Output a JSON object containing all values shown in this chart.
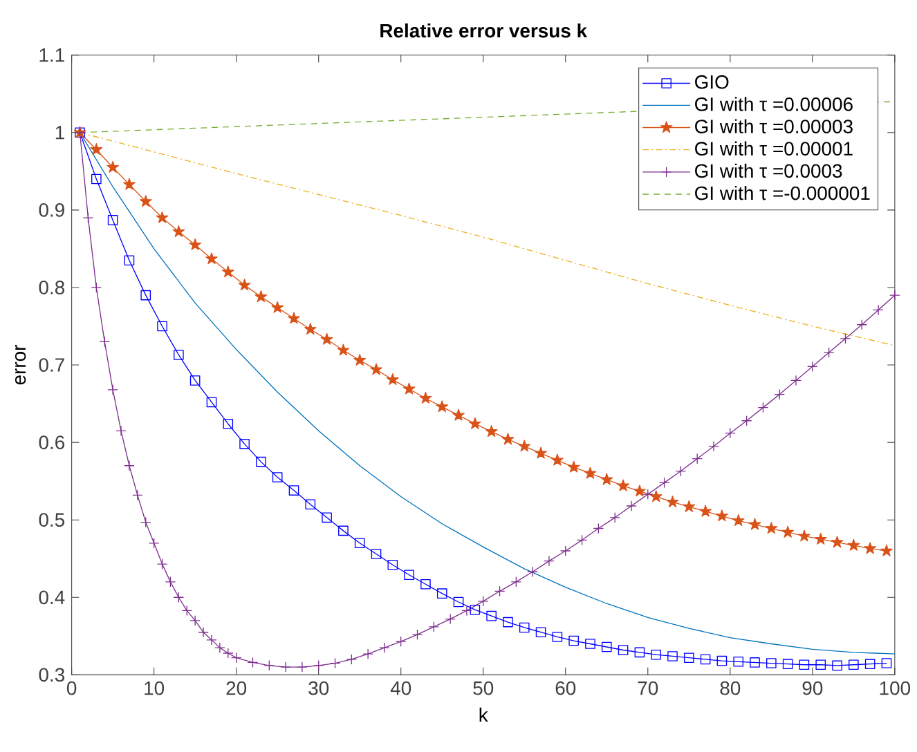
{
  "chart_data": {
    "type": "line",
    "title": "Relative error versus k",
    "xlabel": "k",
    "ylabel": "error",
    "xlim": [
      0,
      100
    ],
    "ylim": [
      0.3,
      1.1
    ],
    "xticks": [
      0,
      10,
      20,
      30,
      40,
      50,
      60,
      70,
      80,
      90,
      100
    ],
    "yticks": [
      0.3,
      0.4,
      0.5,
      0.6,
      0.7,
      0.8,
      0.9,
      1,
      1.1
    ],
    "grid": false,
    "legend": "top right",
    "series": [
      {
        "name": "GIO",
        "color": "#0000ff",
        "marker": "square",
        "line_style": "solid",
        "x": [
          1,
          3,
          5,
          7,
          9,
          11,
          13,
          15,
          17,
          19,
          21,
          23,
          25,
          27,
          29,
          31,
          33,
          35,
          37,
          39,
          41,
          43,
          45,
          47,
          49,
          51,
          53,
          55,
          57,
          59,
          61,
          63,
          65,
          67,
          69,
          71,
          73,
          75,
          77,
          79,
          81,
          83,
          85,
          87,
          89,
          91,
          93,
          95,
          97,
          99
        ],
        "values": [
          1.0,
          0.94,
          0.887,
          0.835,
          0.79,
          0.75,
          0.713,
          0.68,
          0.652,
          0.624,
          0.598,
          0.575,
          0.555,
          0.538,
          0.52,
          0.503,
          0.486,
          0.47,
          0.456,
          0.442,
          0.429,
          0.417,
          0.405,
          0.394,
          0.384,
          0.376,
          0.368,
          0.361,
          0.355,
          0.349,
          0.344,
          0.34,
          0.336,
          0.332,
          0.329,
          0.326,
          0.324,
          0.322,
          0.32,
          0.318,
          0.317,
          0.316,
          0.315,
          0.314,
          0.313,
          0.313,
          0.312,
          0.313,
          0.314,
          0.315
        ]
      },
      {
        "name": "GI with τ =0.00006",
        "color": "#0072bd",
        "marker": "none",
        "line_style": "solid",
        "x": [
          1,
          5,
          10,
          15,
          20,
          25,
          30,
          35,
          40,
          45,
          50,
          55,
          60,
          65,
          70,
          75,
          80,
          85,
          90,
          95,
          100
        ],
        "values": [
          1.0,
          0.93,
          0.85,
          0.78,
          0.72,
          0.665,
          0.615,
          0.57,
          0.53,
          0.495,
          0.465,
          0.437,
          0.413,
          0.392,
          0.374,
          0.36,
          0.348,
          0.34,
          0.333,
          0.329,
          0.327
        ]
      },
      {
        "name": "GI with τ =0.00003",
        "color": "#d95319",
        "marker": "star",
        "line_style": "solid",
        "x": [
          1,
          3,
          5,
          7,
          9,
          11,
          13,
          15,
          17,
          19,
          21,
          23,
          25,
          27,
          29,
          31,
          33,
          35,
          37,
          39,
          41,
          43,
          45,
          47,
          49,
          51,
          53,
          55,
          57,
          59,
          61,
          63,
          65,
          67,
          69,
          71,
          73,
          75,
          77,
          79,
          81,
          83,
          85,
          87,
          89,
          91,
          93,
          95,
          97,
          99
        ],
        "values": [
          1.0,
          0.978,
          0.955,
          0.933,
          0.911,
          0.89,
          0.872,
          0.855,
          0.837,
          0.82,
          0.803,
          0.788,
          0.774,
          0.76,
          0.746,
          0.733,
          0.719,
          0.706,
          0.694,
          0.681,
          0.669,
          0.657,
          0.646,
          0.635,
          0.624,
          0.614,
          0.604,
          0.595,
          0.586,
          0.577,
          0.568,
          0.56,
          0.552,
          0.544,
          0.537,
          0.53,
          0.523,
          0.517,
          0.511,
          0.505,
          0.499,
          0.494,
          0.489,
          0.484,
          0.479,
          0.475,
          0.471,
          0.467,
          0.463,
          0.46
        ]
      },
      {
        "name": "GI with τ =0.00001",
        "color": "#edb120",
        "marker": "none",
        "line_style": "dashdot",
        "x": [
          1,
          10,
          20,
          30,
          40,
          50,
          60,
          70,
          80,
          90,
          100
        ],
        "values": [
          1.0,
          0.975,
          0.947,
          0.92,
          0.893,
          0.865,
          0.835,
          0.805,
          0.777,
          0.75,
          0.725
        ]
      },
      {
        "name": "GI with τ =0.0003",
        "color": "#7e2f8e",
        "marker": "cross",
        "line_style": "solid",
        "x": [
          1,
          2,
          3,
          4,
          5,
          6,
          7,
          8,
          9,
          10,
          11,
          12,
          13,
          14,
          15,
          16,
          17,
          18,
          19,
          20,
          22,
          24,
          26,
          28,
          30,
          32,
          34,
          36,
          38,
          40,
          42,
          44,
          46,
          48,
          50,
          52,
          54,
          56,
          58,
          60,
          62,
          64,
          66,
          68,
          70,
          72,
          74,
          76,
          78,
          80,
          82,
          84,
          86,
          88,
          90,
          92,
          94,
          96,
          98,
          100
        ],
        "values": [
          1.0,
          0.89,
          0.8,
          0.73,
          0.668,
          0.615,
          0.57,
          0.532,
          0.497,
          0.47,
          0.443,
          0.42,
          0.4,
          0.383,
          0.37,
          0.355,
          0.345,
          0.335,
          0.328,
          0.322,
          0.316,
          0.312,
          0.31,
          0.31,
          0.312,
          0.315,
          0.32,
          0.327,
          0.335,
          0.343,
          0.352,
          0.362,
          0.372,
          0.383,
          0.395,
          0.408,
          0.42,
          0.433,
          0.447,
          0.46,
          0.474,
          0.489,
          0.503,
          0.518,
          0.533,
          0.548,
          0.563,
          0.579,
          0.595,
          0.612,
          0.628,
          0.645,
          0.662,
          0.68,
          0.698,
          0.716,
          0.734,
          0.752,
          0.771,
          0.79
        ]
      },
      {
        "name": "GI with τ =-0.000001",
        "color": "#77ac30",
        "marker": "none",
        "line_style": "dashed",
        "x": [
          1,
          100
        ],
        "values": [
          1.0,
          1.04
        ]
      }
    ]
  }
}
